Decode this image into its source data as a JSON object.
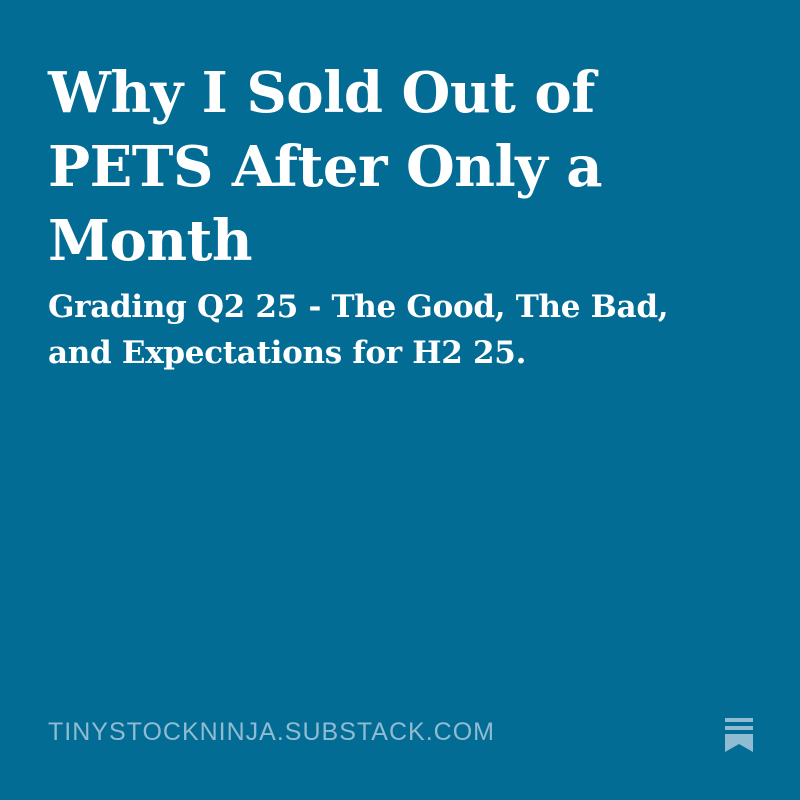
{
  "header": {
    "title": "Why I Sold Out of PETS After Only a Month",
    "subtitle": "Grading Q2 25 - The Good, The Bad, and Expectations for H2 25."
  },
  "footer": {
    "domain": "TINYSTOCKNINJA.SUBSTACK.COM"
  }
}
